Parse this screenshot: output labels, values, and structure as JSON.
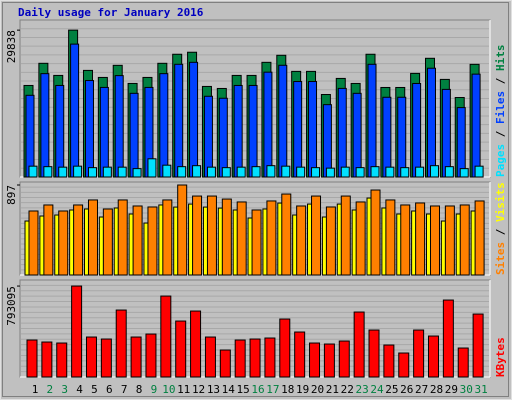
{
  "chart_data": [
    {
      "type": "bar",
      "title": "Daily usage for January 2016",
      "categories": [
        "1",
        "2",
        "3",
        "4",
        "5",
        "6",
        "7",
        "8",
        "9",
        "10",
        "11",
        "12",
        "13",
        "14",
        "15",
        "16",
        "17",
        "18",
        "19",
        "20",
        "21",
        "22",
        "23",
        "24",
        "25",
        "26",
        "27",
        "28",
        "29",
        "30",
        "31"
      ],
      "category_colors": [
        "#000000",
        "#008040",
        "#008040",
        "#000000",
        "#000000",
        "#000000",
        "#000000",
        "#000000",
        "#008040",
        "#008040",
        "#000000",
        "#000000",
        "#000000",
        "#000000",
        "#000000",
        "#008040",
        "#008040",
        "#000000",
        "#000000",
        "#000000",
        "#000000",
        "#000000",
        "#008040",
        "#008040",
        "#000000",
        "#000000",
        "#000000",
        "#000000",
        "#000000",
        "#008040",
        "#008040"
      ],
      "separator": "/",
      "series": [
        {
          "name": "Hits",
          "color": "#008040",
          "values": [
            18600,
            23100,
            20640,
            29838,
            21660,
            20230,
            22690,
            19010,
            20230,
            23100,
            24940,
            25350,
            18400,
            17990,
            20640,
            20640,
            23300,
            24730,
            21460,
            21460,
            16760,
            20030,
            19010,
            24940,
            18190,
            18190,
            21050,
            24120,
            19830,
            16150,
            22890
          ]
        },
        {
          "name": "Files",
          "color": "#0040ff",
          "values": [
            16600,
            21000,
            18600,
            27000,
            19600,
            18200,
            20600,
            17000,
            18200,
            21000,
            22900,
            23300,
            16400,
            16000,
            18600,
            18600,
            21300,
            22700,
            19400,
            19400,
            14700,
            18000,
            17000,
            22900,
            16200,
            16200,
            19000,
            22100,
            17800,
            14100,
            20900
          ]
        },
        {
          "name": "Pages",
          "color": "#00e0ff",
          "values": [
            2200,
            2100,
            2000,
            2200,
            1900,
            2000,
            2000,
            1700,
            3700,
            2400,
            2100,
            2300,
            2000,
            1900,
            2000,
            2100,
            2300,
            2200,
            2000,
            1900,
            1800,
            2000,
            1900,
            2100,
            2000,
            1900,
            2000,
            2300,
            2100,
            1700,
            2200
          ]
        }
      ],
      "ylim": [
        0,
        31900
      ],
      "yticks": [
        29838
      ]
    },
    {
      "type": "bar",
      "series": [
        {
          "name": "Visits",
          "color": "#ffff00",
          "values": [
            538,
            588,
            598,
            648,
            658,
            578,
            668,
            608,
            518,
            698,
            677,
            707,
            677,
            667,
            648,
            568,
            658,
            717,
            598,
            707,
            578,
            707,
            648,
            767,
            668,
            608,
            638,
            608,
            538,
            608,
            638
          ]
        },
        {
          "name": "Sites",
          "color": "#ff8000",
          "values": [
            638,
            698,
            638,
            698,
            748,
            658,
            748,
            688,
            678,
            748,
            897,
            787,
            787,
            757,
            728,
            648,
            738,
            807,
            688,
            787,
            678,
            787,
            728,
            847,
            748,
            698,
            718,
            688,
            688,
            698,
            738
          ]
        }
      ],
      "ylim": [
        0,
        927
      ],
      "yticks": [
        897
      ]
    },
    {
      "type": "bar",
      "series": [
        {
          "name": "KBytes",
          "color": "#ff0000",
          "values": [
            322500,
            305000,
            296300,
            793095,
            348600,
            331200,
            583900,
            348600,
            374700,
            705900,
            488000,
            575200,
            348600,
            235300,
            322500,
            331200,
            339900,
            505500,
            392200,
            296300,
            287600,
            313700,
            566500,
            409600,
            278900,
            209200,
            409600,
            357300,
            671100,
            252700,
            549000
          ]
        }
      ],
      "ylim": [
        0,
        845900
      ],
      "yticks": [
        793095
      ]
    }
  ]
}
